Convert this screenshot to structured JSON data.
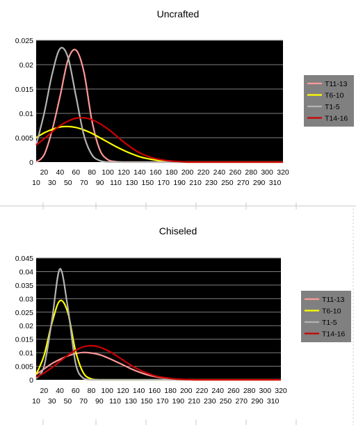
{
  "colors": {
    "plot_background": "#000000",
    "gridline": "#7f7f7f",
    "legend_background": "#808080",
    "sheet_line": "#c8c8c8"
  },
  "chart_data": [
    {
      "type": "line",
      "title": "Uncrafted",
      "xlabel": "",
      "ylabel": "",
      "x": [
        10,
        20,
        30,
        40,
        50,
        60,
        70,
        80,
        90,
        100,
        110,
        120,
        130,
        140,
        150,
        160,
        170,
        180,
        190,
        200,
        210,
        220,
        230,
        240,
        250,
        260,
        270,
        280,
        290,
        300,
        310,
        320
      ],
      "ylim": [
        0,
        0.025
      ],
      "yticks": [
        0,
        0.005,
        0.01,
        0.015,
        0.02,
        0.025
      ],
      "ytick_labels": [
        "0",
        "0.005",
        "0.01",
        "0.015",
        "0.02",
        "0.025"
      ],
      "xtick_labels_upper": [
        "20",
        "40",
        "60",
        "80",
        "100",
        "120",
        "140",
        "160",
        "180",
        "200",
        "220",
        "240",
        "260",
        "280",
        "300",
        "320"
      ],
      "xtick_labels_lower": [
        "10",
        "30",
        "50",
        "70",
        "90",
        "110",
        "130",
        "150",
        "170",
        "190",
        "210",
        "230",
        "250",
        "270",
        "290",
        "310"
      ],
      "grid": true,
      "legend_position": "right",
      "series": [
        {
          "name": "T11-13",
          "color": "#ff9999",
          "values": [
            0,
            0.0015,
            0.0065,
            0.0135,
            0.021,
            0.023,
            0.0185,
            0.0085,
            0.0025,
            0.0005,
            0.0001,
            0,
            0,
            0,
            0,
            0,
            0,
            0,
            0,
            0,
            0,
            0,
            0,
            0,
            0,
            0,
            0,
            0,
            0,
            0,
            0,
            0
          ]
        },
        {
          "name": "T6-10",
          "color": "#ffff00",
          "values": [
            0.005,
            0.006,
            0.0067,
            0.0072,
            0.0073,
            0.0071,
            0.0066,
            0.0059,
            0.005,
            0.0041,
            0.0032,
            0.0024,
            0.0017,
            0.0011,
            0.0007,
            0.0004,
            0.0002,
            0.0001,
            0,
            0,
            0,
            0,
            0,
            0,
            0,
            0,
            0,
            0,
            0,
            0,
            0,
            0
          ]
        },
        {
          "name": "T1-5",
          "color": "#b4b4b4",
          "values": [
            0.0035,
            0.01,
            0.018,
            0.0233,
            0.0215,
            0.0135,
            0.0055,
            0.0015,
            0.0003,
            0,
            0,
            0,
            0,
            0,
            0,
            0,
            0,
            0,
            0,
            0,
            0,
            0,
            0,
            0,
            0,
            0,
            0,
            0,
            0,
            0,
            0,
            0
          ]
        },
        {
          "name": "T14-16",
          "color": "#cc0000",
          "values": [
            0.0035,
            0.0048,
            0.0062,
            0.0075,
            0.0084,
            0.009,
            0.0091,
            0.0087,
            0.0079,
            0.0068,
            0.0055,
            0.0041,
            0.0029,
            0.0019,
            0.0012,
            0.0007,
            0.0004,
            0.0002,
            0.0001,
            0,
            0,
            0,
            0,
            0,
            0,
            0,
            0,
            0,
            0,
            0,
            0,
            0
          ]
        }
      ]
    },
    {
      "type": "line",
      "title": "Chiseled",
      "xlabel": "",
      "ylabel": "",
      "x": [
        10,
        20,
        30,
        40,
        50,
        60,
        70,
        80,
        90,
        100,
        110,
        120,
        130,
        140,
        150,
        160,
        170,
        180,
        190,
        200,
        210,
        220,
        230,
        240,
        250,
        260,
        270,
        280,
        290,
        300,
        310,
        320
      ],
      "ylim": [
        0,
        0.045
      ],
      "yticks": [
        0,
        0.005,
        0.01,
        0.015,
        0.02,
        0.025,
        0.03,
        0.035,
        0.04,
        0.045
      ],
      "ytick_labels": [
        "0",
        "0.005",
        "0.01",
        "0.015",
        "0.02",
        "0.025",
        "0.03",
        "0.035",
        "0.04",
        "0.045"
      ],
      "xtick_labels_upper": [
        "20",
        "40",
        "60",
        "80",
        "100",
        "120",
        "140",
        "160",
        "180",
        "200",
        "220",
        "240",
        "260",
        "280",
        "300",
        "320"
      ],
      "xtick_labels_lower": [
        "10",
        "30",
        "50",
        "70",
        "90",
        "110",
        "130",
        "150",
        "170",
        "190",
        "210",
        "230",
        "250",
        "270",
        "290",
        "310"
      ],
      "grid": true,
      "legend_position": "right",
      "series": [
        {
          "name": "T11-13",
          "color": "#ff9999",
          "values": [
            0.002,
            0.004,
            0.006,
            0.0075,
            0.0088,
            0.0097,
            0.0101,
            0.0099,
            0.0093,
            0.0082,
            0.0069,
            0.0055,
            0.0041,
            0.0029,
            0.0019,
            0.0012,
            0.0007,
            0.0004,
            0.0002,
            0.0001,
            0,
            0,
            0,
            0,
            0,
            0,
            0,
            0,
            0,
            0,
            0,
            0
          ]
        },
        {
          "name": "T6-10",
          "color": "#ffff00",
          "values": [
            0.002,
            0.009,
            0.021,
            0.0292,
            0.025,
            0.0105,
            0.0025,
            0.0003,
            0,
            0,
            0,
            0,
            0,
            0,
            0,
            0,
            0,
            0,
            0,
            0,
            0,
            0,
            0,
            0,
            0,
            0,
            0,
            0,
            0,
            0,
            0,
            0
          ]
        },
        {
          "name": "T1-5",
          "color": "#b4b4b4",
          "values": [
            0.0005,
            0.005,
            0.022,
            0.041,
            0.027,
            0.006,
            0.0005,
            0,
            0,
            0,
            0,
            0,
            0,
            0,
            0,
            0,
            0,
            0,
            0,
            0,
            0,
            0,
            0,
            0,
            0,
            0,
            0,
            0,
            0,
            0,
            0,
            0
          ]
        },
        {
          "name": "T14-16",
          "color": "#cc0000",
          "values": [
            0.001,
            0.0025,
            0.0045,
            0.0068,
            0.009,
            0.0109,
            0.0122,
            0.0126,
            0.0121,
            0.0109,
            0.0092,
            0.0073,
            0.0054,
            0.0038,
            0.0025,
            0.0015,
            0.0009,
            0.0005,
            0.0002,
            0.0001,
            0,
            0,
            0,
            0,
            0,
            0,
            0,
            0,
            0,
            0,
            0,
            0
          ]
        }
      ]
    }
  ]
}
